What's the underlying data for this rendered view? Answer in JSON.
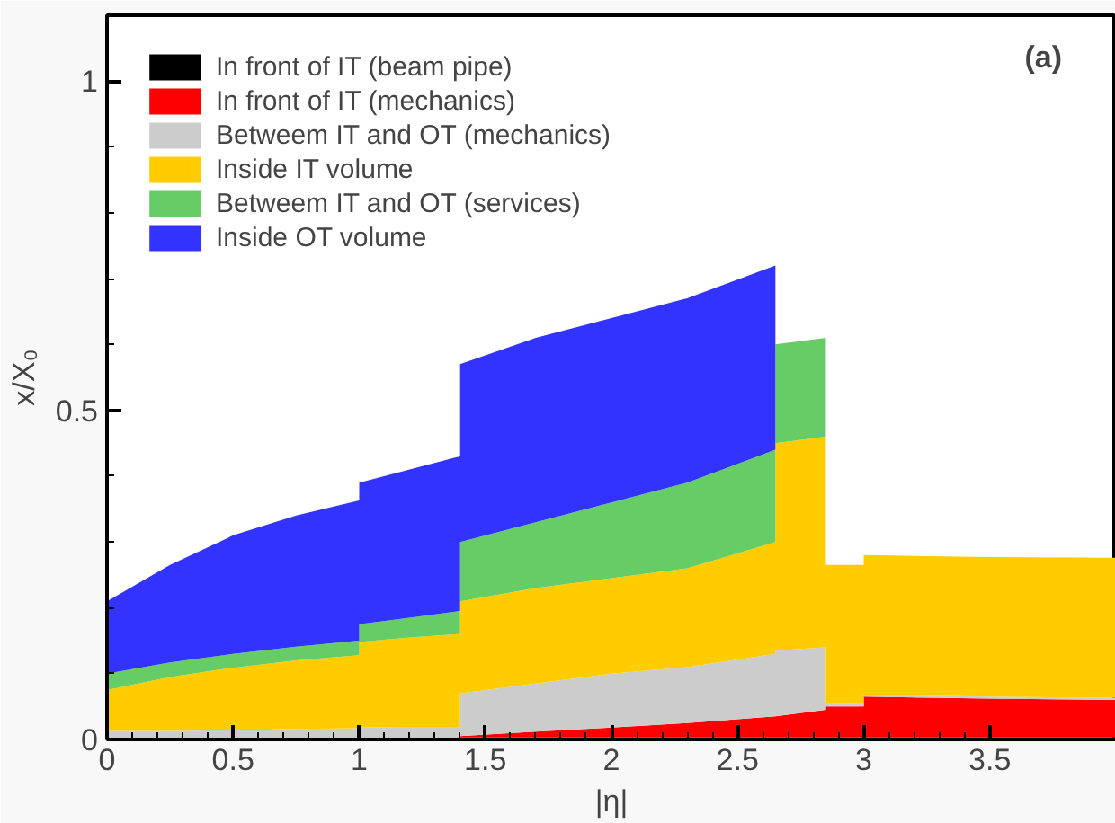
{
  "chart_data": {
    "type": "area",
    "stacked": true,
    "xlabel": "|η|",
    "ylabel": "x/X₀",
    "annotations": [
      "(a)"
    ],
    "xlim": [
      0,
      4.0
    ],
    "xticks": [
      0,
      0.5,
      1,
      1.5,
      2,
      2.5,
      3,
      3.5
    ],
    "ylim": [
      0,
      1.1
    ],
    "yticks": [
      0,
      0.5,
      1
    ],
    "grid": false,
    "legend": "top left",
    "x": [
      0,
      0.25,
      0.5,
      0.75,
      1.0,
      1.0,
      1.2,
      1.4,
      1.4,
      1.7,
      2.0,
      2.3,
      2.65,
      2.65,
      2.85,
      2.85,
      3.0,
      3.0,
      3.5,
      4.0
    ],
    "series": [
      {
        "name": "In front of IT (beam pipe)",
        "color": "#000000",
        "values": [
          0.003,
          0.003,
          0.003,
          0.003,
          0.003,
          0.003,
          0.003,
          0.003,
          0.003,
          0.003,
          0.003,
          0.003,
          0.003,
          0.003,
          0.003,
          0.003,
          0.003,
          0.003,
          0.003,
          0.003
        ]
      },
      {
        "name": "In front of IT (mechanics)",
        "color": "#ff0000",
        "values": [
          0,
          0,
          0,
          0,
          0,
          0,
          0,
          0,
          0.002,
          0.009,
          0.015,
          0.022,
          0.032,
          0.032,
          0.042,
          0.047,
          0.047,
          0.062,
          0.059,
          0.057
        ]
      },
      {
        "name": "Betweem IT and OT (mechanics)",
        "color": "#cccccc",
        "values": [
          0.01,
          0.01,
          0.011,
          0.013,
          0.014,
          0.015,
          0.016,
          0.016,
          0.065,
          0.073,
          0.082,
          0.085,
          0.095,
          0.1,
          0.095,
          0.005,
          0.005,
          0.003,
          0.003,
          0.003
        ]
      },
      {
        "name": "Inside IT volume",
        "color": "#ffcc00",
        "values": [
          0.062,
          0.082,
          0.095,
          0.104,
          0.111,
          0.13,
          0.136,
          0.141,
          0.14,
          0.145,
          0.145,
          0.15,
          0.17,
          0.315,
          0.32,
          0.21,
          0.21,
          0.212,
          0.212,
          0.213
        ]
      },
      {
        "name": "Betweem IT and OT (services)",
        "color": "#66cc66",
        "values": [
          0.025,
          0.022,
          0.021,
          0.021,
          0.022,
          0.027,
          0.03,
          0.035,
          0.09,
          0.1,
          0.115,
          0.13,
          0.14,
          0.15,
          0.15,
          0,
          0,
          0,
          0,
          0
        ]
      },
      {
        "name": "Inside OT volume",
        "color": "#3333ff",
        "values": [
          0.11,
          0.148,
          0.18,
          0.199,
          0.213,
          0.215,
          0.225,
          0.235,
          0.27,
          0.28,
          0.28,
          0.28,
          0.28,
          0,
          0,
          0,
          0,
          0,
          0,
          0
        ]
      }
    ]
  }
}
